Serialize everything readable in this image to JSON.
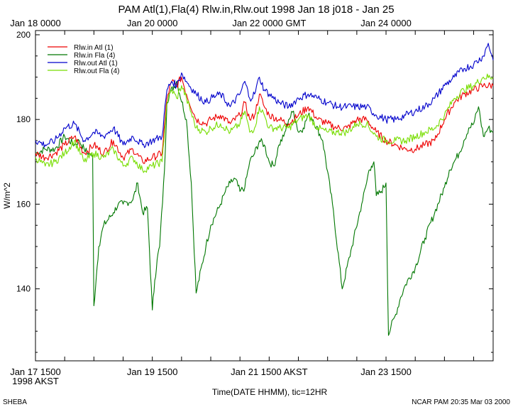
{
  "header": {
    "title": "PAM Atl(1),Fla(4)     Rlw.in,Rlw.out 1998 Jan 18 j018 - Jan 25"
  },
  "footer": {
    "left": "SHEBA",
    "right": "NCAR PAM 20:35 Mar 03 2000"
  },
  "chart_data": {
    "type": "line",
    "title": "PAM Atl(1),Fla(4)     Rlw.in,Rlw.out 1998 Jan 18 j018 - Jan 25",
    "xlabel": "Time(DATE HHMM), tic=12HR",
    "ylabel": "W/m^2",
    "xlim": [
      0,
      188
    ],
    "ylim": [
      123,
      201
    ],
    "grid": false,
    "legend_position": "top-left",
    "x_units": "hours since Jan 17 1500 AKST",
    "y_ticks": [
      140,
      160,
      180,
      200
    ],
    "y_tick_labels": [
      "140",
      "160",
      "180",
      "200"
    ],
    "bottom_ticks": [
      {
        "x": 0,
        "label": "Jan 17 1500",
        "sub": "1998 AKST"
      },
      {
        "x": 48,
        "label": "Jan 19 1500",
        "sub": ""
      },
      {
        "x": 96,
        "label": "Jan 21 1500 AKST",
        "sub": ""
      },
      {
        "x": 144,
        "label": "Jan 23 1500",
        "sub": ""
      }
    ],
    "top_ticks": [
      {
        "x": 0,
        "label": "Jan 18 0000"
      },
      {
        "x": 48,
        "label": "Jan 20 0000"
      },
      {
        "x": 96,
        "label": "Jan 22 0000 GMT"
      },
      {
        "x": 144,
        "label": "Jan 24 0000"
      }
    ],
    "series": [
      {
        "name": "Rlw.in   Atl (1)",
        "color": "#ee0000",
        "x": [
          0,
          4,
          8,
          12,
          16,
          20,
          24,
          28,
          32,
          36,
          40,
          44,
          48,
          52,
          54,
          56,
          58,
          60,
          62,
          66,
          70,
          72,
          76,
          80,
          84,
          86,
          88,
          90,
          92,
          94,
          96,
          100,
          104,
          108,
          112,
          116,
          120,
          124,
          128,
          132,
          136,
          140,
          144,
          148,
          152,
          156,
          160,
          164,
          168,
          172,
          176,
          180,
          184,
          188
        ],
        "y": [
          172,
          171,
          172,
          174,
          176,
          172,
          174,
          172,
          175,
          171,
          173,
          170,
          171,
          172,
          185,
          189,
          188,
          190,
          186,
          180,
          179,
          180,
          181,
          179,
          181,
          184,
          180,
          181,
          186,
          183,
          181,
          180,
          179,
          181,
          183,
          180,
          179,
          178,
          178,
          180,
          180,
          177,
          175,
          174,
          173,
          173,
          174,
          175,
          180,
          184,
          186,
          187,
          188,
          188
        ]
      },
      {
        "name": "Rlw.in   Fla (4)",
        "color": "#007700",
        "x": [
          0,
          4,
          8,
          12,
          16,
          18,
          20,
          23.5,
          24,
          25,
          26,
          28,
          32,
          34,
          36,
          40,
          42,
          44,
          46,
          48,
          49,
          50,
          51,
          53,
          54,
          55,
          58,
          62,
          64,
          66,
          70,
          72,
          76,
          78,
          80,
          82,
          84,
          86,
          88,
          90,
          92,
          94,
          96,
          98,
          100,
          102,
          104,
          106,
          108,
          110,
          112,
          114,
          118,
          122,
          126,
          130,
          134,
          136,
          137,
          138,
          139,
          140,
          142,
          144,
          145,
          146,
          148,
          150,
          152,
          156,
          160,
          164,
          168,
          170,
          172,
          174,
          176,
          178,
          180,
          182,
          184,
          186,
          188
        ],
        "y": [
          172,
          173,
          173,
          176,
          174,
          175,
          173,
          171,
          136,
          143,
          150,
          155,
          158,
          160,
          160,
          161,
          165,
          158,
          159,
          135,
          142,
          147,
          150,
          168,
          184,
          186,
          189,
          180,
          165,
          139,
          150,
          155,
          160,
          163,
          165,
          166,
          163,
          164,
          170,
          172,
          175,
          174,
          170,
          169,
          174,
          176,
          180,
          182,
          177,
          178,
          181,
          180,
          175,
          160,
          140,
          150,
          160,
          165,
          168,
          169,
          170,
          162,
          163,
          165,
          129,
          131,
          134,
          138,
          141,
          145,
          152,
          158,
          164,
          168,
          170,
          172,
          175,
          178,
          179,
          183,
          176,
          178,
          177
        ]
      },
      {
        "name": "Rlw.out   Atl (1)",
        "color": "#0000cc",
        "x": [
          0,
          4,
          8,
          12,
          16,
          20,
          24,
          28,
          32,
          36,
          40,
          44,
          48,
          52,
          54,
          56,
          58,
          60,
          62,
          66,
          70,
          72,
          76,
          80,
          84,
          86,
          88,
          90,
          92,
          94,
          96,
          100,
          104,
          108,
          112,
          116,
          120,
          124,
          128,
          132,
          136,
          140,
          144,
          148,
          152,
          156,
          160,
          164,
          168,
          172,
          176,
          180,
          184,
          186,
          188
        ],
        "y": [
          175,
          174,
          175,
          178,
          179,
          175,
          177,
          176,
          178,
          174,
          176,
          174,
          175,
          176,
          187,
          189,
          188,
          191,
          189,
          186,
          184,
          185,
          186,
          183,
          186,
          189,
          185,
          186,
          190,
          187,
          186,
          184,
          183,
          185,
          186,
          185,
          184,
          183,
          183,
          183,
          183,
          181,
          180,
          180,
          181,
          182,
          183,
          185,
          188,
          190,
          192,
          193,
          195,
          198,
          194
        ]
      },
      {
        "name": "Rlw.out   Fla (4)",
        "color": "#77dd00",
        "x": [
          0,
          4,
          8,
          12,
          16,
          20,
          24,
          28,
          32,
          36,
          40,
          44,
          48,
          52,
          54,
          56,
          58,
          60,
          62,
          66,
          70,
          72,
          76,
          80,
          84,
          86,
          88,
          90,
          92,
          94,
          96,
          100,
          104,
          108,
          112,
          116,
          120,
          124,
          128,
          132,
          136,
          140,
          144,
          148,
          152,
          156,
          160,
          164,
          168,
          172,
          176,
          180,
          184,
          188
        ],
        "y": [
          171,
          169,
          170,
          172,
          175,
          170,
          172,
          171,
          173,
          169,
          171,
          168,
          169,
          170,
          184,
          187,
          185,
          188,
          185,
          178,
          177,
          178,
          179,
          177,
          179,
          182,
          177,
          178,
          183,
          181,
          178,
          178,
          178,
          180,
          181,
          178,
          177,
          177,
          177,
          179,
          179,
          176,
          175,
          175,
          175,
          176,
          177,
          178,
          181,
          185,
          187,
          188,
          190,
          190
        ]
      }
    ]
  }
}
